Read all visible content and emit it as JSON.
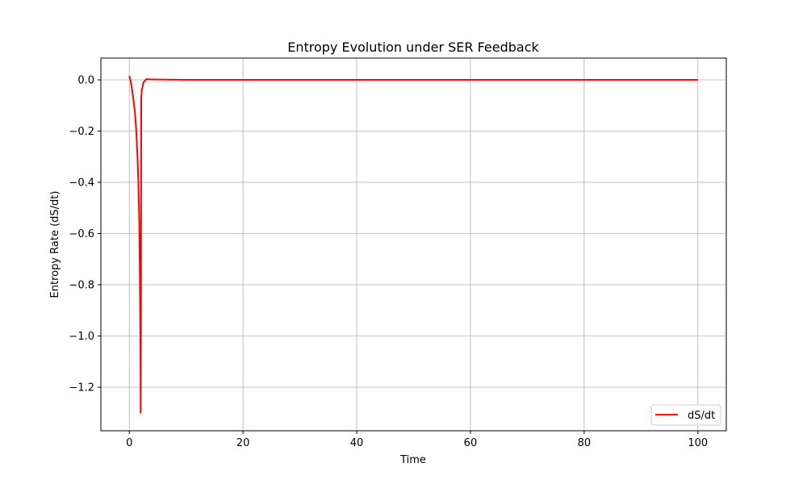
{
  "chart_data": {
    "type": "line",
    "title": "Entropy Evolution under SER Feedback",
    "xlabel": "Time",
    "ylabel": "Entropy Rate (dS/dt)",
    "xlim": [
      -5,
      105
    ],
    "ylim": [
      -1.37,
      0.085
    ],
    "xticks": [
      0,
      20,
      40,
      60,
      80,
      100
    ],
    "yticks": [
      0.0,
      -0.2,
      -0.4,
      -0.6,
      -0.8,
      -1.0,
      -1.2
    ],
    "xtick_labels": [
      "0",
      "20",
      "40",
      "60",
      "80",
      "100"
    ],
    "ytick_labels": [
      "0.0",
      "−0.2",
      "−0.4",
      "−0.6",
      "−0.8",
      "−1.0",
      "−1.2"
    ],
    "grid": true,
    "legend": {
      "position": "lower-right",
      "entries": [
        "dS/dt"
      ]
    },
    "series": [
      {
        "name": "dS/dt",
        "color": "#ff0000",
        "x": [
          0,
          0.2,
          0.5,
          0.8,
          1.0,
          1.2,
          1.4,
          1.6,
          1.75,
          1.85,
          1.95,
          2.0,
          2.05,
          2.1,
          2.2,
          2.5,
          3.0,
          3.5,
          5,
          10,
          20,
          40,
          60,
          80,
          100
        ],
        "y": [
          0.015,
          0.0,
          -0.04,
          -0.09,
          -0.13,
          -0.19,
          -0.28,
          -0.4,
          -0.55,
          -0.75,
          -1.0,
          -1.3,
          -0.9,
          -0.07,
          -0.04,
          -0.01,
          0.003,
          0.002,
          0.001,
          0.0,
          0.0,
          0.0,
          0.0,
          0.0,
          0.0
        ]
      }
    ]
  }
}
